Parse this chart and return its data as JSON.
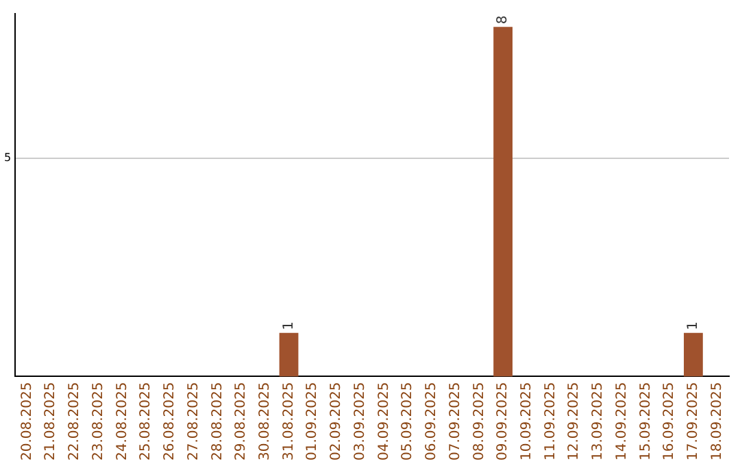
{
  "chart_data": {
    "type": "bar",
    "categories": [
      "20.08.2025",
      "21.08.2025",
      "22.08.2025",
      "23.08.2025",
      "24.08.2025",
      "25.08.2025",
      "26.08.2025",
      "27.08.2025",
      "28.08.2025",
      "29.08.2025",
      "30.08.2025",
      "31.08.2025",
      "01.09.2025",
      "02.09.2025",
      "03.09.2025",
      "04.09.2025",
      "05.09.2025",
      "06.09.2025",
      "07.09.2025",
      "08.09.2025",
      "09.09.2025",
      "10.09.2025",
      "11.09.2025",
      "12.09.2025",
      "13.09.2025",
      "14.09.2025",
      "15.09.2025",
      "16.09.2025",
      "17.09.2025",
      "18.09.2025"
    ],
    "values": [
      0,
      0,
      0,
      0,
      0,
      0,
      0,
      0,
      0,
      0,
      0,
      1,
      0,
      0,
      0,
      0,
      0,
      0,
      0,
      0,
      8,
      0,
      0,
      0,
      0,
      0,
      0,
      0,
      1,
      0
    ],
    "value_labels": [
      null,
      null,
      null,
      null,
      null,
      null,
      null,
      null,
      null,
      null,
      null,
      "1",
      null,
      null,
      null,
      null,
      null,
      null,
      null,
      null,
      "8",
      null,
      null,
      null,
      null,
      null,
      null,
      null,
      "1",
      null
    ],
    "color": "#a0522d",
    "ylim": [
      0,
      8.3
    ],
    "yticks": [
      5
    ],
    "grid": "y"
  }
}
